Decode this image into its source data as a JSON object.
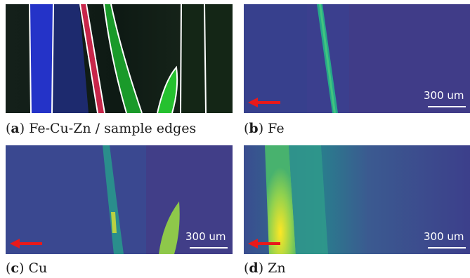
{
  "panels": [
    {
      "id": "a",
      "letter": "a",
      "caption": " Fe-Cu-Zn / sample edges"
    },
    {
      "id": "b",
      "letter": "b",
      "caption": " Fe",
      "scale_bar": "300 um"
    },
    {
      "id": "c",
      "letter": "c",
      "caption": " Cu",
      "scale_bar": "300 um"
    },
    {
      "id": "d",
      "letter": "d",
      "caption": " Zn",
      "scale_bar": "300 um"
    }
  ],
  "colors": {
    "arrow": "#e8191a",
    "viridis_low": "#440154",
    "viridis_mid": "#2c7d8c",
    "viridis_high": "#fde725",
    "edge_line": "#ffffff"
  },
  "icons": {
    "direction": "left-arrow-icon"
  }
}
